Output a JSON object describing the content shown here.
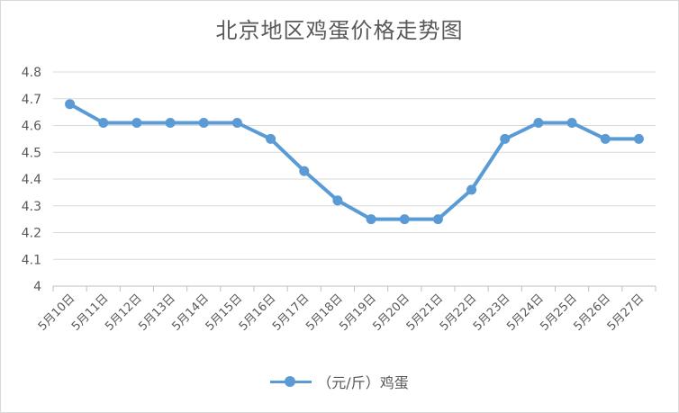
{
  "chart_data": {
    "type": "line",
    "title": "北京地区鸡蛋价格走势图",
    "categories": [
      "5月10日",
      "5月11日",
      "5月12日",
      "5月13日",
      "5月14日",
      "5月15日",
      "5月16日",
      "5月17日",
      "5月18日",
      "5月19日",
      "5月20日",
      "5月21日",
      "5月22日",
      "5月23日",
      "5月24日",
      "5月25日",
      "5月26日",
      "5月27日"
    ],
    "series": [
      {
        "name": "（元/斤）鸡蛋",
        "values": [
          4.68,
          4.61,
          4.61,
          4.61,
          4.61,
          4.61,
          4.55,
          4.43,
          4.32,
          4.25,
          4.25,
          4.25,
          4.36,
          4.55,
          4.61,
          4.61,
          4.55,
          4.55
        ]
      }
    ],
    "ylim": [
      4,
      4.8
    ],
    "yticks": [
      "4",
      "4.1",
      "4.2",
      "4.3",
      "4.4",
      "4.5",
      "4.6",
      "4.7",
      "4.8"
    ],
    "grid": true,
    "legend_position": "bottom",
    "color": "#5b9bd5"
  }
}
